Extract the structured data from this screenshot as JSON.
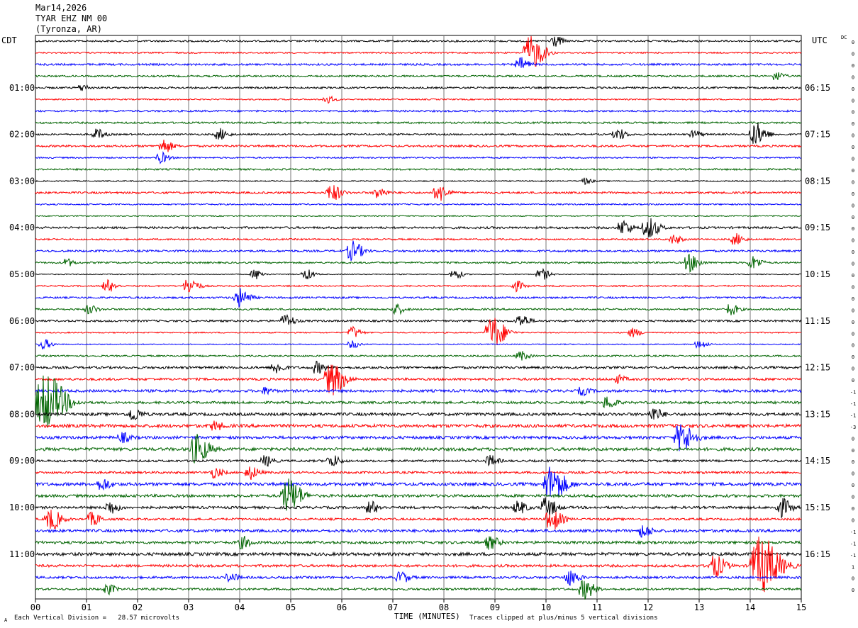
{
  "header": {
    "date": "Mar14,2026",
    "station": "TYAR EHZ NM 00",
    "location": "(Tyronza, AR)"
  },
  "left_label": "CDT",
  "right_label": "UTC",
  "dc_label": "DC",
  "footer": {
    "scale": "Each Vertical Division =   28.57 microvolts",
    "clip_note": "Traces clipped at plus/minus 5 vertical divisions",
    "corner": "A"
  },
  "colors": {
    "trace_cycle": [
      "#000000",
      "#ff0000",
      "#0000ff",
      "#006400"
    ],
    "grid": "#000000"
  },
  "chart_data": {
    "type": "line",
    "description_kind": "helicorder seismogram",
    "xlabel": "TIME (MINUTES)",
    "x_ticks": [
      "00",
      "01",
      "02",
      "03",
      "04",
      "05",
      "06",
      "07",
      "08",
      "09",
      "10",
      "11",
      "12",
      "13",
      "14",
      "15"
    ],
    "xlim": [
      0,
      15
    ],
    "rows_per_hour": 4,
    "row_count": 48,
    "left_hour_labels": [
      "01:00",
      "02:00",
      "03:00",
      "04:00",
      "05:00",
      "06:00",
      "07:00",
      "08:00",
      "09:00",
      "10:00",
      "11:00"
    ],
    "right_hour_labels": [
      "06:15",
      "07:15",
      "08:15",
      "09:15",
      "10:15",
      "11:15",
      "12:15",
      "13:15",
      "14:15",
      "15:15",
      "16:15"
    ],
    "dc_offsets": [
      "0",
      "0",
      "0",
      "0",
      "0",
      "0",
      "0",
      "0",
      "0",
      "0",
      "0",
      "0",
      "0",
      "0",
      "0",
      "0",
      "0",
      "0",
      "0",
      "0",
      "0",
      "0",
      "0",
      "0",
      "0",
      "0",
      "0",
      "0",
      "0",
      "0",
      "-1",
      "-1",
      "-1",
      "-3",
      "0",
      "0",
      "0",
      "0",
      "0",
      "0",
      "0",
      "0",
      "-1",
      "-1",
      "-1",
      "1",
      "0",
      "0"
    ],
    "events": [
      {
        "row": 0,
        "minute": 10.15,
        "amp": 0.9
      },
      {
        "row": 1,
        "minute": 9.7,
        "amp": 2.6
      },
      {
        "row": 2,
        "minute": 9.5,
        "amp": 1.0
      },
      {
        "row": 3,
        "minute": 14.5,
        "amp": 0.7
      },
      {
        "row": 4,
        "minute": 0.9,
        "amp": 0.5
      },
      {
        "row": 5,
        "minute": 5.7,
        "amp": 0.6
      },
      {
        "row": 8,
        "minute": 1.2,
        "amp": 0.8
      },
      {
        "row": 8,
        "minute": 3.6,
        "amp": 0.9
      },
      {
        "row": 8,
        "minute": 11.4,
        "amp": 0.9
      },
      {
        "row": 8,
        "minute": 12.9,
        "amp": 0.6
      },
      {
        "row": 8,
        "minute": 14.1,
        "amp": 1.8
      },
      {
        "row": 9,
        "minute": 2.5,
        "amp": 1.1
      },
      {
        "row": 10,
        "minute": 2.45,
        "amp": 0.8
      },
      {
        "row": 12,
        "minute": 10.75,
        "amp": 0.5
      },
      {
        "row": 13,
        "minute": 5.8,
        "amp": 1.3
      },
      {
        "row": 13,
        "minute": 6.7,
        "amp": 0.9
      },
      {
        "row": 13,
        "minute": 7.9,
        "amp": 1.3
      },
      {
        "row": 16,
        "minute": 11.5,
        "amp": 1.2
      },
      {
        "row": 16,
        "minute": 12.0,
        "amp": 1.6
      },
      {
        "row": 17,
        "minute": 12.5,
        "amp": 0.7
      },
      {
        "row": 17,
        "minute": 13.7,
        "amp": 0.9
      },
      {
        "row": 18,
        "minute": 6.2,
        "amp": 1.5
      },
      {
        "row": 19,
        "minute": 12.8,
        "amp": 1.4
      },
      {
        "row": 19,
        "minute": 14.05,
        "amp": 1.0
      },
      {
        "row": 19,
        "minute": 0.6,
        "amp": 0.6
      },
      {
        "row": 20,
        "minute": 4.3,
        "amp": 0.8
      },
      {
        "row": 20,
        "minute": 5.3,
        "amp": 0.8
      },
      {
        "row": 20,
        "minute": 8.2,
        "amp": 0.8
      },
      {
        "row": 20,
        "minute": 9.9,
        "amp": 0.9
      },
      {
        "row": 21,
        "minute": 1.4,
        "amp": 1.0
      },
      {
        "row": 21,
        "minute": 3.0,
        "amp": 1.3
      },
      {
        "row": 21,
        "minute": 9.4,
        "amp": 0.8
      },
      {
        "row": 22,
        "minute": 4.0,
        "amp": 1.4
      },
      {
        "row": 23,
        "minute": 1.05,
        "amp": 0.7
      },
      {
        "row": 23,
        "minute": 7.05,
        "amp": 0.8
      },
      {
        "row": 23,
        "minute": 13.6,
        "amp": 0.9
      },
      {
        "row": 24,
        "minute": 4.9,
        "amp": 1.0
      },
      {
        "row": 24,
        "minute": 9.5,
        "amp": 1.0
      },
      {
        "row": 25,
        "minute": 6.2,
        "amp": 0.9
      },
      {
        "row": 25,
        "minute": 8.95,
        "amp": 2.5
      },
      {
        "row": 25,
        "minute": 11.7,
        "amp": 0.7
      },
      {
        "row": 26,
        "minute": 0.15,
        "amp": 0.8
      },
      {
        "row": 26,
        "minute": 6.2,
        "amp": 0.6
      },
      {
        "row": 26,
        "minute": 13.0,
        "amp": 0.7
      },
      {
        "row": 27,
        "minute": 9.5,
        "amp": 0.7
      },
      {
        "row": 28,
        "minute": 4.7,
        "amp": 0.9
      },
      {
        "row": 28,
        "minute": 5.5,
        "amp": 0.9
      },
      {
        "row": 29,
        "minute": 5.8,
        "amp": 2.5
      },
      {
        "row": 29,
        "minute": 11.4,
        "amp": 0.6
      },
      {
        "row": 30,
        "minute": 4.5,
        "amp": 0.5
      },
      {
        "row": 30,
        "minute": 10.7,
        "amp": 0.6
      },
      {
        "row": 31,
        "minute": 0.2,
        "amp": 4.5
      },
      {
        "row": 31,
        "minute": 11.2,
        "amp": 1.0
      },
      {
        "row": 32,
        "minute": 1.9,
        "amp": 1.0
      },
      {
        "row": 32,
        "minute": 12.1,
        "amp": 1.0
      },
      {
        "row": 33,
        "minute": 3.5,
        "amp": 0.7
      },
      {
        "row": 34,
        "minute": 12.65,
        "amp": 2.3
      },
      {
        "row": 34,
        "minute": 1.7,
        "amp": 0.7
      },
      {
        "row": 35,
        "minute": 3.15,
        "amp": 2.2
      },
      {
        "row": 36,
        "minute": 4.5,
        "amp": 0.8
      },
      {
        "row": 36,
        "minute": 5.8,
        "amp": 0.9
      },
      {
        "row": 36,
        "minute": 8.9,
        "amp": 0.8
      },
      {
        "row": 37,
        "minute": 3.5,
        "amp": 0.8
      },
      {
        "row": 37,
        "minute": 4.2,
        "amp": 1.0
      },
      {
        "row": 38,
        "minute": 1.3,
        "amp": 0.9
      },
      {
        "row": 38,
        "minute": 10.1,
        "amp": 2.8
      },
      {
        "row": 39,
        "minute": 4.95,
        "amp": 2.6
      },
      {
        "row": 40,
        "minute": 1.45,
        "amp": 1.0
      },
      {
        "row": 40,
        "minute": 6.55,
        "amp": 1.0
      },
      {
        "row": 40,
        "minute": 9.45,
        "amp": 1.0
      },
      {
        "row": 40,
        "minute": 10.0,
        "amp": 1.5
      },
      {
        "row": 40,
        "minute": 14.6,
        "amp": 1.4
      },
      {
        "row": 41,
        "minute": 0.3,
        "amp": 1.6
      },
      {
        "row": 41,
        "minute": 1.1,
        "amp": 1.0
      },
      {
        "row": 41,
        "minute": 10.1,
        "amp": 1.7
      },
      {
        "row": 42,
        "minute": 11.9,
        "amp": 1.0
      },
      {
        "row": 43,
        "minute": 4.05,
        "amp": 0.9
      },
      {
        "row": 43,
        "minute": 8.9,
        "amp": 1.0
      },
      {
        "row": 45,
        "minute": 13.3,
        "amp": 1.7
      },
      {
        "row": 45,
        "minute": 14.2,
        "amp": 4.5
      },
      {
        "row": 46,
        "minute": 3.8,
        "amp": 0.7
      },
      {
        "row": 46,
        "minute": 7.15,
        "amp": 0.9
      },
      {
        "row": 46,
        "minute": 10.45,
        "amp": 1.2
      },
      {
        "row": 47,
        "minute": 10.75,
        "amp": 1.5
      },
      {
        "row": 47,
        "minute": 1.4,
        "amp": 0.8
      }
    ]
  }
}
